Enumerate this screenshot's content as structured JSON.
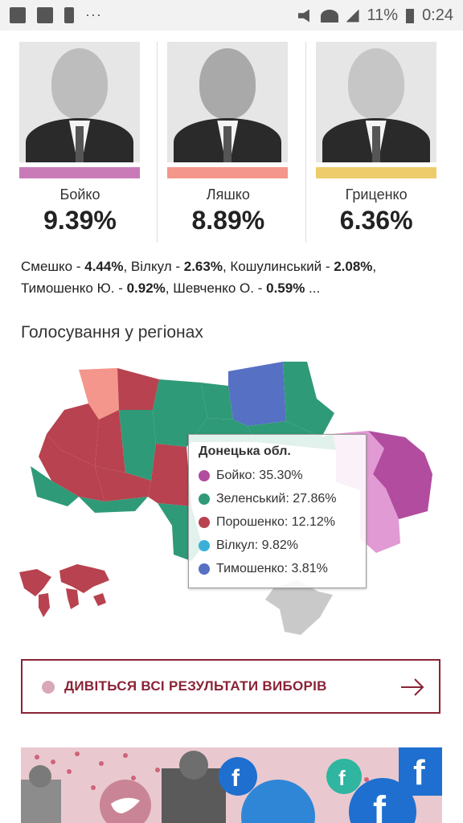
{
  "status_bar": {
    "battery": "11%",
    "time": "0:24",
    "left_icons": [
      "image-icon",
      "facebook-icon",
      "alert-icon"
    ],
    "more": "···"
  },
  "candidates": [
    {
      "name": "Бойко",
      "percent": "9.39%",
      "color": "#c97bb8"
    },
    {
      "name": "Ляшко",
      "percent": "8.89%",
      "color": "#f4968b"
    },
    {
      "name": "Гриценко",
      "percent": "6.36%",
      "color": "#eecb6b"
    }
  ],
  "others": [
    {
      "name": "Смешко",
      "percent": "4.44%"
    },
    {
      "name": "Вілкул",
      "percent": "2.63%"
    },
    {
      "name": "Кошулинський",
      "percent": "2.08%"
    },
    {
      "name": "Тимошенко Ю.",
      "percent": "0.92%"
    },
    {
      "name": "Шевченко О.",
      "percent": "0.59%"
    }
  ],
  "others_ellipsis": "...",
  "section_title": "Голосування у регіонах",
  "tooltip": {
    "title": "Донецька обл.",
    "rows": [
      {
        "label": "Бойко: 35.30%",
        "color": "#b24c9f"
      },
      {
        "label": "Зеленський: 27.86%",
        "color": "#2f9a78"
      },
      {
        "label": "Порошенко: 12.12%",
        "color": "#b8424f"
      },
      {
        "label": "Вілкул: 9.82%",
        "color": "#3ab0d8"
      },
      {
        "label": "Тимошенко: 3.81%",
        "color": "#5670c4"
      }
    ]
  },
  "results_button": {
    "label": "ДИВІТЬСЯ ВСІ РЕЗУЛЬТАТИ ВИБОРІВ"
  }
}
